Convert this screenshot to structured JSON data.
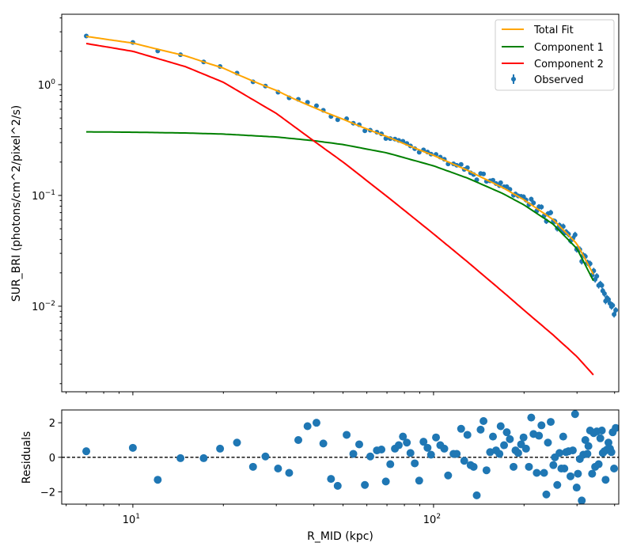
{
  "chart_data": [
    {
      "type": "line",
      "title": "",
      "xlabel": "",
      "ylabel": "SUR_BRI (photons/cm^2/pixel^2/s)",
      "xscale": "log",
      "yscale": "log",
      "xlim": [
        5.8,
        413
      ],
      "ylim": [
        0.00169,
        4.32
      ],
      "y_tick_labels": [
        {
          "value": 1,
          "base": "10",
          "exp": "0"
        },
        {
          "value": 0.1,
          "base": "10",
          "exp": "−1"
        },
        {
          "value": 0.01,
          "base": "10",
          "exp": "−2"
        }
      ],
      "legend_position": "top-right",
      "legend": [
        "Total Fit",
        "Component 1",
        "Component 2",
        "Observed"
      ],
      "colors": {
        "total": "#ffa500",
        "component1": "#008000",
        "component2": "#ff0000",
        "observed": "#1f77b4"
      },
      "series": [
        {
          "name": "Component 1",
          "x": [
            7,
            10,
            15,
            20,
            30,
            40,
            50,
            70,
            100,
            130,
            170,
            200,
            250,
            300,
            340
          ],
          "values": [
            0.375,
            0.372,
            0.366,
            0.358,
            0.337,
            0.312,
            0.288,
            0.242,
            0.185,
            0.143,
            0.104,
            0.082,
            0.055,
            0.033,
            0.017
          ]
        },
        {
          "name": "Component 2",
          "x": [
            7,
            10,
            15,
            20,
            30,
            40,
            50,
            70,
            100,
            130,
            170,
            200,
            250,
            300,
            340
          ],
          "values": [
            2.35,
            2.0,
            1.45,
            1.05,
            0.55,
            0.31,
            0.2,
            0.098,
            0.045,
            0.025,
            0.0135,
            0.0092,
            0.0055,
            0.0035,
            0.0024
          ]
        }
      ]
    },
    {
      "type": "scatter",
      "xlabel": "R_MID (kpc)",
      "ylabel": "Residuals",
      "xscale": "log",
      "xlim": [
        5.8,
        413
      ],
      "ylim": [
        -2.71,
        2.74
      ],
      "x_tick_labels": [
        {
          "value": 10,
          "base": "10",
          "exp": "1"
        },
        {
          "value": 100,
          "base": "10",
          "exp": "2"
        }
      ],
      "y_tick_labels": [
        "2",
        "0",
        "−2"
      ],
      "y_ticks": [
        2,
        0,
        -2
      ],
      "reference_line": 0,
      "points": [
        [
          7,
          0.35
        ],
        [
          10,
          0.55
        ],
        [
          12.1,
          -1.3
        ],
        [
          14.4,
          -0.05
        ],
        [
          17.2,
          -0.05
        ],
        [
          19.5,
          0.5
        ],
        [
          22.2,
          0.85
        ],
        [
          25.1,
          -0.55
        ],
        [
          27.6,
          0.05
        ],
        [
          30.4,
          -0.65
        ],
        [
          33.1,
          -0.9
        ],
        [
          35.5,
          1.0
        ],
        [
          38.1,
          1.8
        ],
        [
          40.8,
          2.0
        ],
        [
          43,
          0.8
        ],
        [
          45.6,
          -1.25
        ],
        [
          48,
          -1.65
        ],
        [
          51.4,
          1.3
        ],
        [
          54.1,
          0.2
        ],
        [
          56.6,
          0.75
        ],
        [
          59.1,
          -1.6
        ],
        [
          61.6,
          0.05
        ],
        [
          64.8,
          0.4
        ],
        [
          67.1,
          0.45
        ],
        [
          69.4,
          -1.4
        ],
        [
          71.8,
          -0.4
        ],
        [
          74.4,
          0.5
        ],
        [
          76.6,
          0.7
        ],
        [
          79.1,
          1.2
        ],
        [
          81.5,
          0.85
        ],
        [
          83.8,
          0.25
        ],
        [
          86.6,
          -0.35
        ],
        [
          89.6,
          -1.35
        ],
        [
          92.6,
          0.9
        ],
        [
          95.5,
          0.55
        ],
        [
          98.1,
          0.15
        ],
        [
          101.9,
          1.15
        ],
        [
          105.3,
          0.7
        ],
        [
          108.6,
          0.5
        ],
        [
          111.8,
          -1.05
        ],
        [
          116.5,
          0.2
        ],
        [
          119.4,
          0.2
        ],
        [
          123.5,
          1.65
        ],
        [
          126.5,
          -0.2
        ],
        [
          129.6,
          1.3
        ],
        [
          132.8,
          -0.45
        ],
        [
          135.9,
          -0.55
        ],
        [
          139.2,
          -2.2
        ],
        [
          143.4,
          1.6
        ],
        [
          146.6,
          2.1
        ],
        [
          150,
          -0.75
        ],
        [
          154.2,
          0.3
        ],
        [
          157.6,
          1.2
        ],
        [
          161.4,
          0.4
        ],
        [
          165.6,
          0.2
        ],
        [
          167.2,
          1.8
        ],
        [
          171.6,
          0.7
        ],
        [
          175.2,
          1.45
        ],
        [
          179.4,
          1.05
        ],
        [
          184.5,
          -0.55
        ],
        [
          187.3,
          0.4
        ],
        [
          191.2,
          0.25
        ],
        [
          195.5,
          0.75
        ],
        [
          199.2,
          1.15
        ],
        [
          203,
          0.5
        ],
        [
          207.6,
          -0.55
        ],
        [
          211.3,
          2.3
        ],
        [
          215,
          1.35
        ],
        [
          220.4,
          -0.9
        ],
        [
          224.2,
          1.25
        ],
        [
          228.5,
          1.85
        ],
        [
          233.1,
          -0.9
        ],
        [
          237.2,
          -2.15
        ],
        [
          240.1,
          0.85
        ],
        [
          245.3,
          2.05
        ],
        [
          250.3,
          -0.45
        ],
        [
          253.3,
          0.0
        ],
        [
          257.9,
          -1.6
        ],
        [
          262.3,
          0.25
        ],
        [
          266.1,
          -0.65
        ],
        [
          269.9,
          1.2
        ],
        [
          272.3,
          -0.65
        ],
        [
          276,
          0.3
        ],
        [
          281.1,
          0.35
        ],
        [
          285.4,
          -1.1
        ],
        [
          290.5,
          0.4
        ],
        [
          295.6,
          2.5
        ],
        [
          299.2,
          -1.75
        ],
        [
          302.1,
          -0.95
        ],
        [
          306.5,
          -0.1
        ],
        [
          311.1,
          -2.5
        ],
        [
          314.8,
          0.15
        ],
        [
          319.8,
          1.0
        ],
        [
          324.8,
          0.2
        ],
        [
          327.4,
          0.65
        ],
        [
          331.6,
          1.55
        ],
        [
          336.8,
          -0.95
        ],
        [
          340.9,
          1.4
        ],
        [
          344.7,
          -0.55
        ],
        [
          349.1,
          1.5
        ],
        [
          354.1,
          -0.4
        ],
        [
          358.6,
          1.1
        ],
        [
          362.8,
          1.55
        ],
        [
          365.4,
          0.25
        ],
        [
          370.1,
          0.35
        ],
        [
          373.4,
          -1.3
        ],
        [
          377.4,
          0.45
        ],
        [
          381.7,
          0.85
        ],
        [
          386.2,
          0.5
        ],
        [
          390.4,
          0.3
        ],
        [
          394.2,
          1.45
        ],
        [
          398.5,
          -0.65
        ],
        [
          403.5,
          1.7
        ]
      ]
    }
  ]
}
